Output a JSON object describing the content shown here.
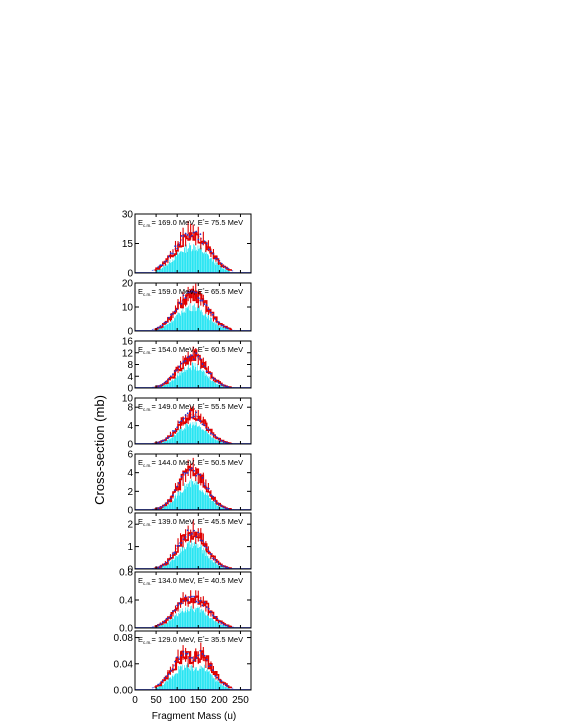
{
  "figure": {
    "ylabel": "Cross-section (mb)",
    "xlabel": "Fragment Mass (u)"
  },
  "colors": {
    "histogram": "#00e0f0",
    "red_line": "#e00000",
    "blue_points": "#2233cc",
    "blue_dash": "#6677ff",
    "frame": "#000000"
  },
  "chart_data": [
    {
      "type": "bar",
      "ecm_prefix": "E",
      "ecm_sub": "c.m.",
      "ecm_value": "= 169.0 MeV,",
      "estar_prefix": "E",
      "estar_sup": "*",
      "estar_value": "= 75.5 MeV",
      "xlim": [
        0,
        275
      ],
      "ylim": [
        0,
        30
      ],
      "yticks": [
        "0",
        "15",
        "30"
      ],
      "peak": 20,
      "sigma": 40,
      "modulation": 0
    },
    {
      "type": "bar",
      "ecm_prefix": "E",
      "ecm_sub": "c.m.",
      "ecm_value": "= 159.0 MeV,",
      "estar_prefix": "E",
      "estar_sup": "*",
      "estar_value": "= 65.5 MeV",
      "xlim": [
        0,
        275
      ],
      "ylim": [
        0,
        20
      ],
      "yticks": [
        "0",
        "10",
        "20"
      ],
      "peak": 15,
      "sigma": 37,
      "modulation": 0
    },
    {
      "type": "bar",
      "ecm_prefix": "E",
      "ecm_sub": "c.m.",
      "ecm_value": "= 154.0 MeV,",
      "estar_prefix": "E",
      "estar_sup": "*",
      "estar_value": "= 60.5 MeV",
      "xlim": [
        0,
        275
      ],
      "ylim": [
        0,
        16
      ],
      "yticks": [
        "0",
        "4",
        "8",
        "12",
        "16"
      ],
      "peak": 11,
      "sigma": 33,
      "modulation": 0
    },
    {
      "type": "bar",
      "ecm_prefix": "E",
      "ecm_sub": "c.m.",
      "ecm_value": "= 149.0 MeV,",
      "estar_prefix": "E",
      "estar_sup": "*",
      "estar_value": "= 55.5 MeV",
      "xlim": [
        0,
        275
      ],
      "ylim": [
        0,
        10
      ],
      "yticks": [
        "0",
        "4",
        "8",
        "10"
      ],
      "peak": 6.3,
      "sigma": 33,
      "modulation": 0
    },
    {
      "type": "bar",
      "ecm_prefix": "E",
      "ecm_sub": "c.m.",
      "ecm_value": "= 144.0 MeV,",
      "estar_prefix": "E",
      "estar_sup": "*",
      "estar_value": "= 50.5 MeV",
      "xlim": [
        0,
        275
      ],
      "ylim": [
        0,
        6
      ],
      "yticks": [
        "0",
        "2",
        "4",
        "6"
      ],
      "peak": 4.4,
      "sigma": 32,
      "modulation": 0.05
    },
    {
      "type": "bar",
      "ecm_prefix": "E",
      "ecm_sub": "c.m.",
      "ecm_value": "= 139.0 MeV,",
      "estar_prefix": "E",
      "estar_sup": "*",
      "estar_value": "= 45.5 MeV",
      "xlim": [
        0,
        275
      ],
      "ylim": [
        0,
        2.5
      ],
      "yticks": [
        "0",
        "1",
        "2"
      ],
      "peak": 1.75,
      "sigma": 32,
      "modulation": 0.08
    },
    {
      "type": "bar",
      "ecm_prefix": "E",
      "ecm_sub": "c.m.",
      "ecm_value": "= 134.0 MeV,",
      "estar_prefix": "E",
      "estar_sup": "*",
      "estar_value": "= 40.5 MeV",
      "xlim": [
        0,
        275
      ],
      "ylim": [
        0,
        0.8
      ],
      "yticks": [
        "0.0",
        "0.4",
        "0.8"
      ],
      "peak": 0.47,
      "sigma": 36,
      "modulation": 0.15
    },
    {
      "type": "bar",
      "ecm_prefix": "E",
      "ecm_sub": "c.m.",
      "ecm_value": "= 129.0 MeV,",
      "estar_prefix": "E",
      "estar_sup": "*",
      "estar_value": "= 35.5 MeV",
      "xlim": [
        0,
        275
      ],
      "ylim": [
        0,
        0.09
      ],
      "yticks": [
        "0.00",
        "0.04",
        "0.08"
      ],
      "peak": 0.068,
      "sigma": 38,
      "modulation": 0.3
    }
  ],
  "xaxis": {
    "ticks": [
      "0",
      "50",
      "100",
      "150",
      "200",
      "250"
    ],
    "tick_values": [
      0,
      50,
      100,
      150,
      200,
      250
    ]
  }
}
